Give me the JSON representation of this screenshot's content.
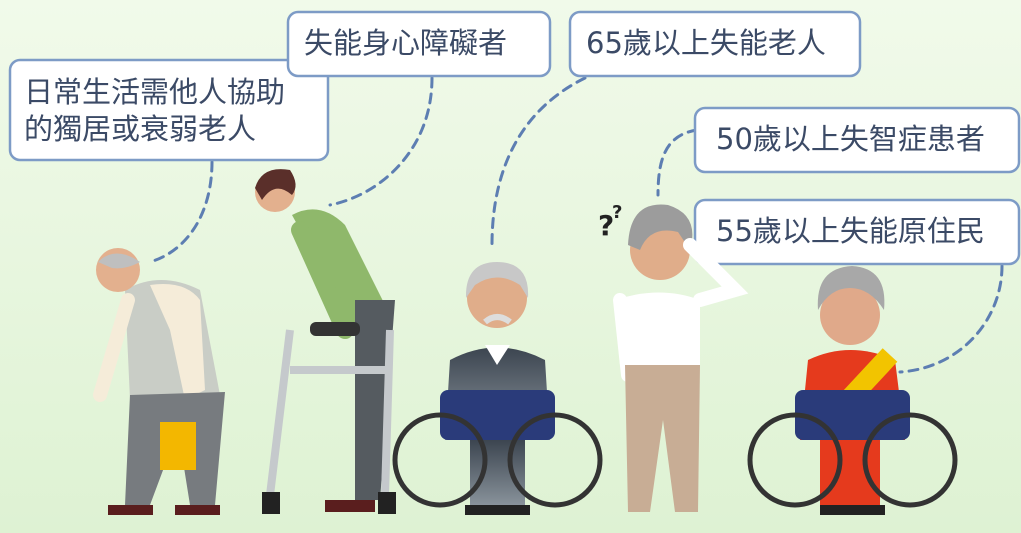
{
  "labels": [
    {
      "lines": [
        "日常生活需他人協助",
        "的獨居或衰弱老人"
      ]
    },
    {
      "lines": [
        "失能身心障礙者"
      ]
    },
    {
      "lines": [
        "65歲以上失能老人"
      ]
    },
    {
      "lines": [
        "50歲以上失智症患者"
      ]
    },
    {
      "lines": [
        "55歲以上失能原住民"
      ]
    }
  ],
  "illustration": {
    "question_mark": "?"
  }
}
